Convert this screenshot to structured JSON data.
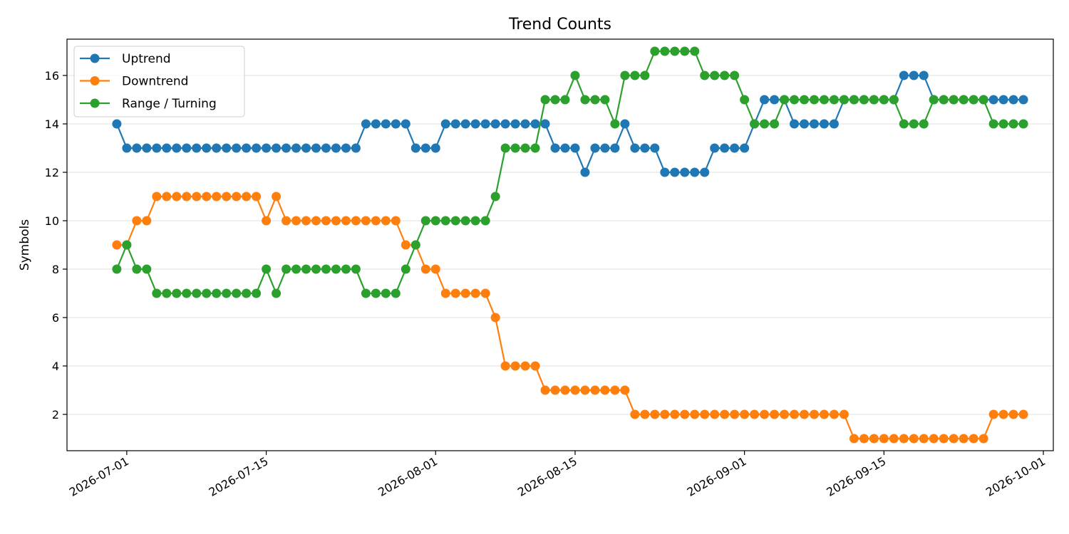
{
  "chart_data": {
    "type": "line",
    "title": "Trend Counts",
    "xlabel": "",
    "ylabel": "Symbols",
    "x_start": "2026-06-30",
    "x_end": "2026-09-27",
    "x_ticks": [
      "2026-07-01",
      "2026-07-15",
      "2026-08-01",
      "2026-08-15",
      "2026-09-01",
      "2026-09-15",
      "2026-10-01"
    ],
    "y_ticks": [
      2,
      4,
      6,
      8,
      10,
      12,
      14,
      16
    ],
    "ylim": [
      0.5,
      17.5
    ],
    "xlim": [
      "2026-06-25",
      "2026-10-02"
    ],
    "grid": "y",
    "legend_position": "top-left",
    "series": [
      {
        "name": "Uptrend",
        "color": "#1f77b4",
        "values": [
          14,
          13,
          13,
          13,
          13,
          13,
          13,
          13,
          13,
          13,
          13,
          13,
          13,
          13,
          13,
          13,
          13,
          13,
          13,
          13,
          13,
          13,
          13,
          13,
          13,
          14,
          14,
          14,
          14,
          14,
          13,
          13,
          13,
          14,
          14,
          14,
          14,
          14,
          14,
          14,
          14,
          14,
          14,
          14,
          13,
          13,
          13,
          12,
          13,
          13,
          13,
          14,
          13,
          13,
          13,
          12,
          12,
          12,
          12,
          12,
          13,
          13,
          13,
          13,
          14,
          15,
          15,
          15,
          14,
          14,
          14,
          14,
          14,
          15,
          15,
          15,
          15,
          15,
          15,
          16,
          16,
          16,
          15,
          15,
          15,
          15,
          15,
          15,
          15,
          15,
          15,
          15
        ]
      },
      {
        "name": "Downtrend",
        "color": "#ff7f0e",
        "values": [
          9,
          9,
          10,
          10,
          11,
          11,
          11,
          11,
          11,
          11,
          11,
          11,
          11,
          11,
          11,
          10,
          11,
          10,
          10,
          10,
          10,
          10,
          10,
          10,
          10,
          10,
          10,
          10,
          10,
          9,
          9,
          8,
          8,
          7,
          7,
          7,
          7,
          7,
          6,
          4,
          4,
          4,
          4,
          3,
          3,
          3,
          3,
          3,
          3,
          3,
          3,
          3,
          2,
          2,
          2,
          2,
          2,
          2,
          2,
          2,
          2,
          2,
          2,
          2,
          2,
          2,
          2,
          2,
          2,
          2,
          2,
          2,
          2,
          2,
          1,
          1,
          1,
          1,
          1,
          1,
          1,
          1,
          1,
          1,
          1,
          1,
          1,
          1,
          2,
          2,
          2,
          2
        ]
      },
      {
        "name": "Range / Turning",
        "color": "#2ca02c",
        "values": [
          8,
          9,
          8,
          8,
          7,
          7,
          7,
          7,
          7,
          7,
          7,
          7,
          7,
          7,
          7,
          8,
          7,
          8,
          8,
          8,
          8,
          8,
          8,
          8,
          8,
          7,
          7,
          7,
          7,
          8,
          9,
          10,
          10,
          10,
          10,
          10,
          10,
          10,
          11,
          13,
          13,
          13,
          13,
          15,
          15,
          15,
          16,
          15,
          15,
          15,
          14,
          16,
          16,
          16,
          17,
          17,
          17,
          17,
          17,
          16,
          16,
          16,
          16,
          15,
          14,
          14,
          14,
          15,
          15,
          15,
          15,
          15,
          15,
          15,
          15,
          15,
          15,
          15,
          15,
          14,
          14,
          14,
          15,
          15,
          15,
          15,
          15,
          15,
          14,
          14,
          14,
          14
        ]
      }
    ]
  }
}
